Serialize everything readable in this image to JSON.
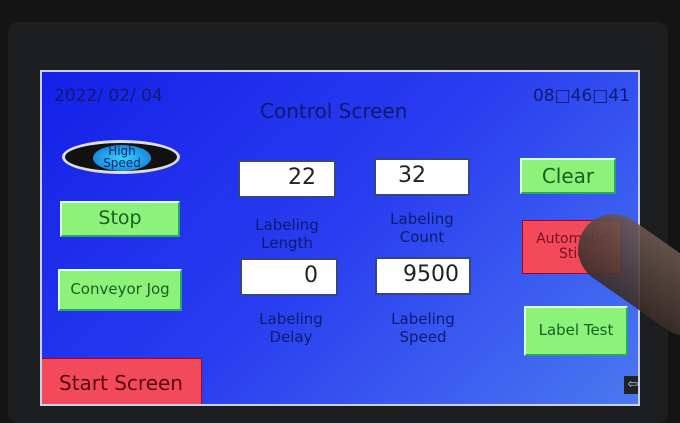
{
  "header": {
    "date": "2022/ 02/ 04",
    "time": "08□46□41",
    "title": "Control Screen"
  },
  "buttons": {
    "high_speed": "High Speed",
    "stop": "Stop",
    "conveyor_jog": "Conveyor Jog",
    "clear": "Clear",
    "automatic_stick": "Automatic Stic",
    "label_test": "Label Test",
    "start_screen": "Start Screen"
  },
  "fields": {
    "labeling_length": {
      "label": "Labeling Length",
      "value": "22"
    },
    "labeling_count": {
      "label": "Labeling Count",
      "value": "32"
    },
    "labeling_delay": {
      "label": "Labeling Delay",
      "value": "0"
    },
    "labeling_speed": {
      "label": "Labeling Speed",
      "value": "9500"
    }
  },
  "icons": {
    "back": "back-arrow-icon"
  },
  "colors": {
    "screen": "#2a3ef0",
    "green_button": "#8cf27a",
    "red_button": "#f24a5a"
  }
}
